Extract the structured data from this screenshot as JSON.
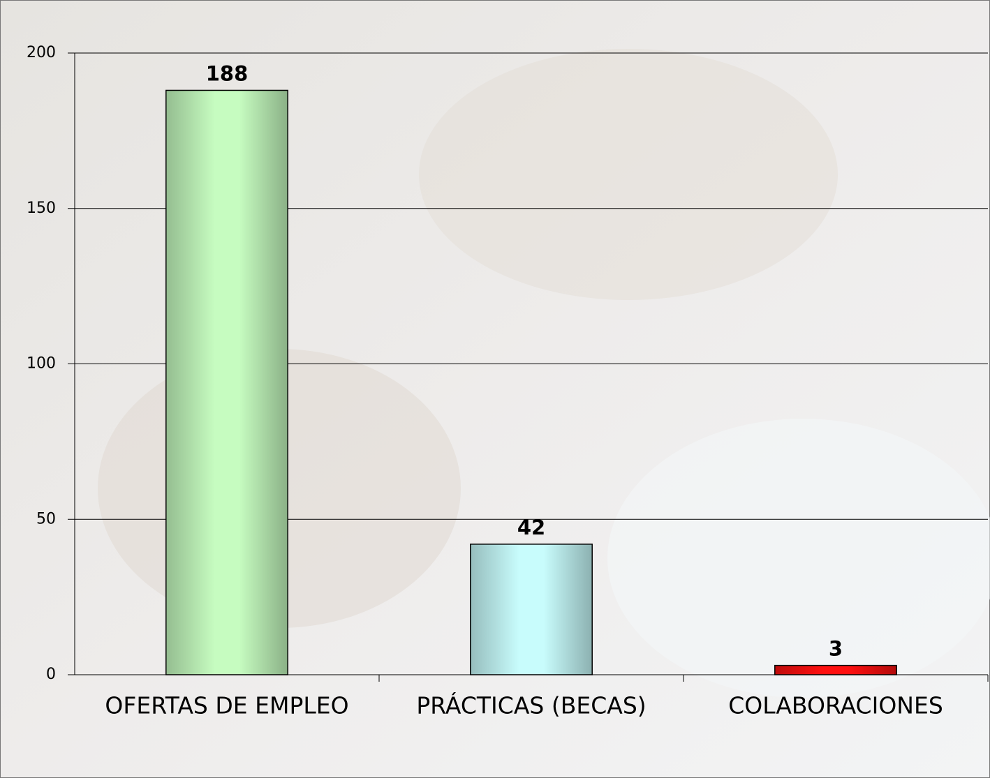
{
  "chart_data": {
    "type": "bar",
    "categories": [
      "OFERTAS DE EMPLEO",
      "PRÁCTICAS (BECAS)",
      "COLABORACIONES"
    ],
    "values": [
      188,
      42,
      3
    ],
    "colors": [
      "#c6fcc0",
      "#c8fcfc",
      "#ff1010"
    ],
    "ylim": [
      0,
      200
    ],
    "yticks": [
      0,
      50,
      100,
      150,
      200
    ],
    "grid": true
  }
}
